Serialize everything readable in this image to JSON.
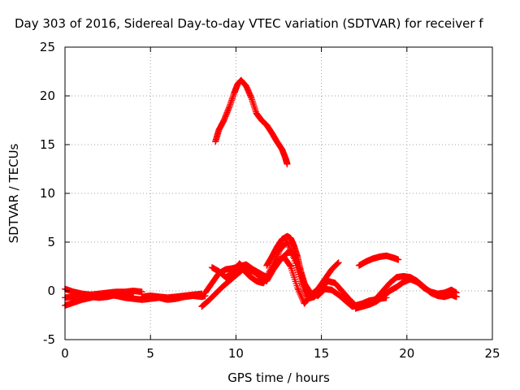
{
  "chart_data": {
    "type": "scatter",
    "title": "Day 303 of 2016, Sidereal Day-to-day VTEC variation (SDTVAR) for receiver f",
    "xlabel": "GPS time / hours",
    "ylabel": "SDTVAR / TECUs",
    "xlim": [
      0,
      25
    ],
    "ylim": [
      -5,
      25
    ],
    "x_ticks": [
      0,
      5,
      10,
      15,
      20,
      25
    ],
    "y_ticks": [
      -5,
      0,
      5,
      10,
      15,
      20,
      25
    ],
    "grid": true,
    "legend": "none",
    "marker": "+",
    "color": "#ff0000",
    "series": [
      {
        "x": [
          0.0,
          0.5,
          1.0,
          1.5,
          2.0,
          2.5,
          3.0,
          3.5,
          4.0,
          4.5
        ],
        "y": [
          -1.5,
          -1.2,
          -0.9,
          -0.7,
          -0.5,
          -0.4,
          -0.5,
          -0.7,
          -0.8,
          -0.9
        ]
      },
      {
        "x": [
          0.0,
          0.5,
          1.0,
          1.5,
          2.0,
          2.5,
          3.0,
          3.5,
          4.0,
          4.5
        ],
        "y": [
          0.2,
          -0.1,
          -0.3,
          -0.4,
          -0.3,
          -0.2,
          -0.1,
          -0.1,
          0.0,
          -0.1
        ]
      },
      {
        "x": [
          0.0,
          0.5,
          1.0,
          1.5,
          2.0,
          2.5,
          3.0,
          3.5,
          4.0
        ],
        "y": [
          -0.7,
          -0.6,
          -0.5,
          -0.6,
          -0.7,
          -0.6,
          -0.4,
          -0.5,
          -0.6
        ]
      },
      {
        "x": [
          4.5,
          5.0,
          5.5,
          6.0,
          6.5,
          7.0,
          7.5,
          8.0
        ],
        "y": [
          -0.6,
          -0.5,
          -0.6,
          -0.7,
          -0.6,
          -0.5,
          -0.4,
          -0.3
        ]
      },
      {
        "x": [
          4.5,
          5.0,
          5.5,
          6.0,
          6.5,
          7.0,
          7.5,
          8.0,
          8.2
        ],
        "y": [
          -0.9,
          -0.8,
          -0.7,
          -0.9,
          -0.8,
          -0.6,
          -0.5,
          -0.6,
          -0.5
        ]
      },
      {
        "x": [
          8.0,
          8.4,
          8.8,
          9.2,
          9.6,
          10.0,
          10.4,
          10.8,
          11.2,
          11.6,
          12.0,
          12.4,
          12.8,
          13.2,
          13.6,
          14.0,
          14.4,
          14.8,
          15.2,
          15.6,
          16.0
        ],
        "y": [
          -1.6,
          -1.0,
          -0.3,
          0.4,
          1.0,
          1.6,
          2.2,
          1.5,
          1.0,
          0.8,
          1.8,
          3.0,
          3.5,
          2.5,
          0.3,
          -1.3,
          -0.4,
          0.2,
          1.2,
          2.2,
          2.9
        ]
      },
      {
        "x": [
          8.2,
          8.6,
          9.0,
          9.4,
          9.8,
          10.2,
          10.6,
          11.0,
          11.4,
          11.8,
          12.2,
          12.6,
          13.0,
          13.4,
          13.8,
          14.2,
          14.6,
          15.0,
          15.4,
          15.8,
          16.2,
          16.6,
          17.0,
          17.4,
          17.8,
          18.2
        ],
        "y": [
          -0.2,
          0.8,
          1.8,
          2.2,
          2.3,
          2.5,
          2.7,
          2.2,
          1.8,
          1.4,
          2.8,
          4.3,
          5.0,
          3.3,
          1.0,
          -0.8,
          -0.6,
          0.4,
          1.0,
          0.8,
          0.0,
          -0.8,
          -1.5,
          -1.3,
          -1.0,
          -0.9
        ]
      },
      {
        "x": [
          8.6,
          9.0,
          9.4,
          9.8,
          10.2,
          10.6,
          11.0,
          11.4,
          11.8,
          12.2,
          12.6,
          13.0,
          13.3,
          13.6,
          14.0,
          14.4,
          14.8,
          15.2,
          15.6,
          16.0,
          16.4,
          16.8,
          17.2,
          17.6,
          18.0,
          18.4,
          18.8
        ],
        "y": [
          2.4,
          2.0,
          1.4,
          1.8,
          2.8,
          2.2,
          2.0,
          1.5,
          1.0,
          2.2,
          3.2,
          3.9,
          4.0,
          2.8,
          0.8,
          -0.3,
          -0.5,
          0.2,
          0.1,
          -0.4,
          -1.0,
          -1.6,
          -1.5,
          -1.3,
          -1.0,
          -0.8,
          -0.7
        ]
      },
      {
        "x": [
          11.8,
          12.1,
          12.4,
          12.7,
          13.0,
          13.2,
          13.4,
          13.6,
          13.8,
          14.0,
          14.2
        ],
        "y": [
          2.6,
          3.5,
          4.5,
          5.3,
          5.6,
          5.4,
          4.6,
          3.5,
          2.0,
          0.8,
          -0.5
        ]
      },
      {
        "x": [
          8.8,
          9.0,
          9.3,
          9.6,
          9.9,
          10.1,
          10.3,
          10.6,
          10.9,
          11.2,
          11.5,
          11.8,
          12.1,
          12.4,
          12.7,
          12.9,
          13.0
        ],
        "y": [
          15.3,
          16.5,
          17.5,
          18.8,
          20.3,
          21.2,
          21.6,
          21.0,
          19.8,
          18.2,
          17.5,
          17.0,
          16.2,
          15.3,
          14.5,
          13.6,
          13.0
        ]
      },
      {
        "x": [
          17.2,
          17.6,
          18.0,
          18.4,
          18.8,
          19.2,
          19.5
        ],
        "y": [
          2.6,
          3.0,
          3.3,
          3.5,
          3.6,
          3.4,
          3.2
        ]
      },
      {
        "x": [
          17.8,
          18.2,
          18.6,
          19.0,
          19.4,
          19.8,
          20.2,
          20.6,
          21.0,
          21.4,
          21.8,
          22.2,
          22.6,
          22.9
        ],
        "y": [
          -1.2,
          -0.8,
          0.0,
          0.8,
          1.4,
          1.5,
          1.4,
          1.0,
          0.4,
          -0.2,
          -0.5,
          -0.6,
          -0.4,
          -0.6
        ]
      },
      {
        "x": [
          17.0,
          17.4,
          17.8,
          18.2,
          18.6,
          19.0,
          19.4,
          19.8,
          20.2,
          20.6,
          21.0,
          21.4,
          21.8,
          22.2,
          22.6,
          22.9
        ],
        "y": [
          -1.8,
          -1.6,
          -1.4,
          -1.1,
          -0.6,
          0.0,
          0.4,
          0.9,
          1.2,
          0.9,
          0.3,
          -0.1,
          -0.3,
          -0.2,
          0.1,
          -0.2
        ]
      }
    ]
  }
}
